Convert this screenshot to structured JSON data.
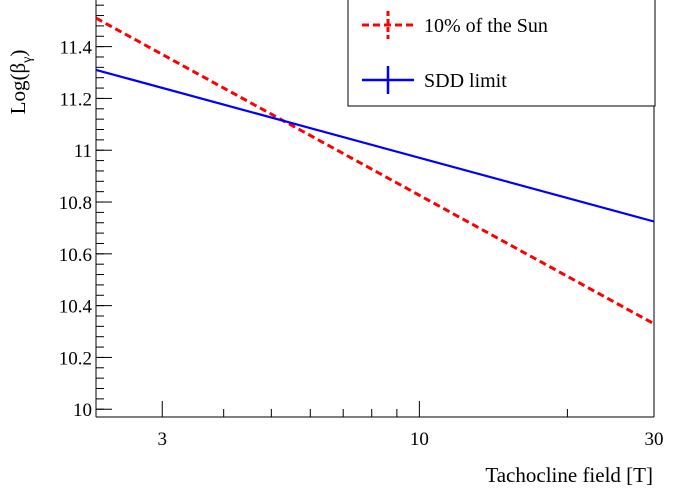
{
  "chart_data": {
    "type": "line",
    "title": "",
    "xlabel": "Tachocline field [T]",
    "ylabel_main": "Log(β",
    "ylabel_sub": "γ",
    "ylabel_close": ")",
    "x_scale": "log",
    "xlim": [
      2.2,
      30
    ],
    "ylim": [
      9.97,
      11.58
    ],
    "x_ticks": [
      3,
      10,
      30
    ],
    "x_tick_labels": [
      "3",
      "10",
      "30"
    ],
    "y_ticks": [
      10,
      10.2,
      10.4,
      10.6,
      10.8,
      11,
      11.2,
      11.4
    ],
    "y_tick_labels": [
      "10",
      "10.2",
      "10.4",
      "10.6",
      "10.8",
      "11",
      "11.2",
      "11.4"
    ],
    "grid": false,
    "legend_position": "top-right",
    "series": [
      {
        "name": "10% of the Sun",
        "color": "#ff0000",
        "style": "dashed",
        "x": [
          2.2,
          30
        ],
        "y": [
          11.51,
          10.33
        ]
      },
      {
        "name": "SDD limit",
        "color": "#0000ff",
        "style": "solid",
        "x": [
          2.2,
          30
        ],
        "y": [
          11.31,
          10.725
        ]
      }
    ]
  }
}
